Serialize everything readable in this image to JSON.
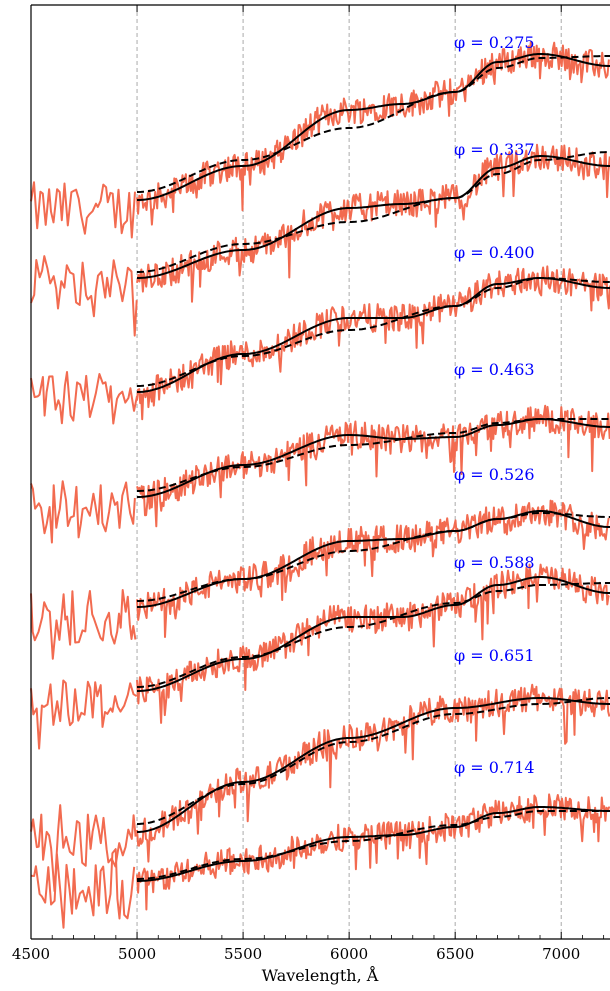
{
  "chart_data": {
    "type": "line",
    "title": "",
    "xlabel": "Wavelength, Å",
    "ylabel": "",
    "xlim": [
      4500,
      7230
    ],
    "xticks": [
      4500,
      5000,
      5500,
      6000,
      6500,
      7000
    ],
    "xtick_labels": [
      "4500",
      "5000",
      "5500",
      "6000",
      "6500",
      "7000"
    ],
    "grid": "vertical dashed at 5000, 5500, 6000, 6500, 7000",
    "colors": {
      "observed": "#f26b50",
      "model_solid": "#000000",
      "model_dashed": "#000000",
      "phase_label": "#0000ff"
    },
    "series": [
      {
        "phase_label": "φ = 0.275",
        "model_solid": [
          [
            5000,
            0.0
          ],
          [
            5500,
            0.17
          ],
          [
            6000,
            0.45
          ],
          [
            6250,
            0.48
          ],
          [
            6500,
            0.54
          ],
          [
            6700,
            0.69
          ],
          [
            6900,
            0.73
          ],
          [
            7230,
            0.67
          ]
        ],
        "model_dashed": [
          [
            5000,
            0.04
          ],
          [
            5500,
            0.2
          ],
          [
            6000,
            0.36
          ],
          [
            6500,
            0.54
          ],
          [
            6700,
            0.66
          ],
          [
            6900,
            0.71
          ],
          [
            7230,
            0.72
          ]
        ]
      },
      {
        "phase_label": "φ = 0.337",
        "model_solid": [
          [
            5000,
            0.0
          ],
          [
            5500,
            0.14
          ],
          [
            6000,
            0.35
          ],
          [
            6250,
            0.37
          ],
          [
            6500,
            0.4
          ],
          [
            6700,
            0.55
          ],
          [
            6900,
            0.61
          ],
          [
            7230,
            0.56
          ]
        ],
        "model_dashed": [
          [
            5000,
            0.03
          ],
          [
            5500,
            0.17
          ],
          [
            6000,
            0.28
          ],
          [
            6500,
            0.4
          ],
          [
            6700,
            0.52
          ],
          [
            6900,
            0.59
          ],
          [
            7230,
            0.63
          ]
        ]
      },
      {
        "phase_label": "φ = 0.400",
        "model_solid": [
          [
            5000,
            0.0
          ],
          [
            5500,
            0.19
          ],
          [
            6000,
            0.37
          ],
          [
            6250,
            0.37
          ],
          [
            6500,
            0.43
          ],
          [
            6700,
            0.54
          ],
          [
            6900,
            0.57
          ],
          [
            7230,
            0.52
          ]
        ],
        "model_dashed": [
          [
            5000,
            0.03
          ],
          [
            5500,
            0.18
          ],
          [
            6000,
            0.31
          ],
          [
            6500,
            0.43
          ],
          [
            6700,
            0.52
          ],
          [
            6900,
            0.57
          ],
          [
            7230,
            0.55
          ]
        ]
      },
      {
        "phase_label": "φ = 0.463",
        "model_solid": [
          [
            5000,
            0.0
          ],
          [
            5500,
            0.16
          ],
          [
            6000,
            0.31
          ],
          [
            6250,
            0.29
          ],
          [
            6500,
            0.3
          ],
          [
            6700,
            0.36
          ],
          [
            6900,
            0.39
          ],
          [
            7230,
            0.35
          ]
        ],
        "model_dashed": [
          [
            5000,
            0.03
          ],
          [
            5500,
            0.15
          ],
          [
            6000,
            0.26
          ],
          [
            6500,
            0.32
          ],
          [
            6700,
            0.37
          ],
          [
            6900,
            0.39
          ],
          [
            7230,
            0.39
          ]
        ]
      },
      {
        "phase_label": "φ = 0.526",
        "model_solid": [
          [
            5000,
            0.0
          ],
          [
            5500,
            0.14
          ],
          [
            6000,
            0.33
          ],
          [
            6250,
            0.34
          ],
          [
            6500,
            0.38
          ],
          [
            6700,
            0.44
          ],
          [
            6900,
            0.48
          ],
          [
            7230,
            0.4
          ]
        ],
        "model_dashed": [
          [
            5000,
            0.03
          ],
          [
            5500,
            0.14
          ],
          [
            6000,
            0.28
          ],
          [
            6500,
            0.38
          ],
          [
            6700,
            0.44
          ],
          [
            6900,
            0.47
          ],
          [
            7230,
            0.45
          ]
        ]
      },
      {
        "phase_label": "φ = 0.588",
        "model_solid": [
          [
            5000,
            0.0
          ],
          [
            5500,
            0.16
          ],
          [
            6000,
            0.37
          ],
          [
            6250,
            0.37
          ],
          [
            6500,
            0.43
          ],
          [
            6700,
            0.53
          ],
          [
            6900,
            0.57
          ],
          [
            7230,
            0.49
          ]
        ],
        "model_dashed": [
          [
            5000,
            0.02
          ],
          [
            5500,
            0.17
          ],
          [
            6000,
            0.32
          ],
          [
            6500,
            0.44
          ],
          [
            6700,
            0.5
          ],
          [
            6900,
            0.53
          ],
          [
            7230,
            0.54
          ]
        ]
      },
      {
        "phase_label": "φ = 0.651",
        "model_solid": [
          [
            5000,
            0.0
          ],
          [
            5500,
            0.25
          ],
          [
            6000,
            0.47
          ],
          [
            6500,
            0.62
          ],
          [
            6900,
            0.67
          ],
          [
            7230,
            0.64
          ]
        ],
        "model_dashed": [
          [
            5000,
            0.04
          ],
          [
            5500,
            0.24
          ],
          [
            6000,
            0.45
          ],
          [
            6500,
            0.59
          ],
          [
            6900,
            0.64
          ],
          [
            7230,
            0.67
          ]
        ]
      },
      {
        "phase_label": "φ = 0.714",
        "model_solid": [
          [
            5000,
            0.0
          ],
          [
            5500,
            0.1
          ],
          [
            6000,
            0.22
          ],
          [
            6250,
            0.23
          ],
          [
            6500,
            0.27
          ],
          [
            6700,
            0.34
          ],
          [
            6900,
            0.37
          ],
          [
            7230,
            0.35
          ]
        ],
        "model_dashed": [
          [
            5000,
            0.01
          ],
          [
            5500,
            0.11
          ],
          [
            6000,
            0.2
          ],
          [
            6500,
            0.28
          ],
          [
            6700,
            0.32
          ],
          [
            6900,
            0.35
          ],
          [
            7230,
            0.35
          ]
        ]
      }
    ]
  }
}
